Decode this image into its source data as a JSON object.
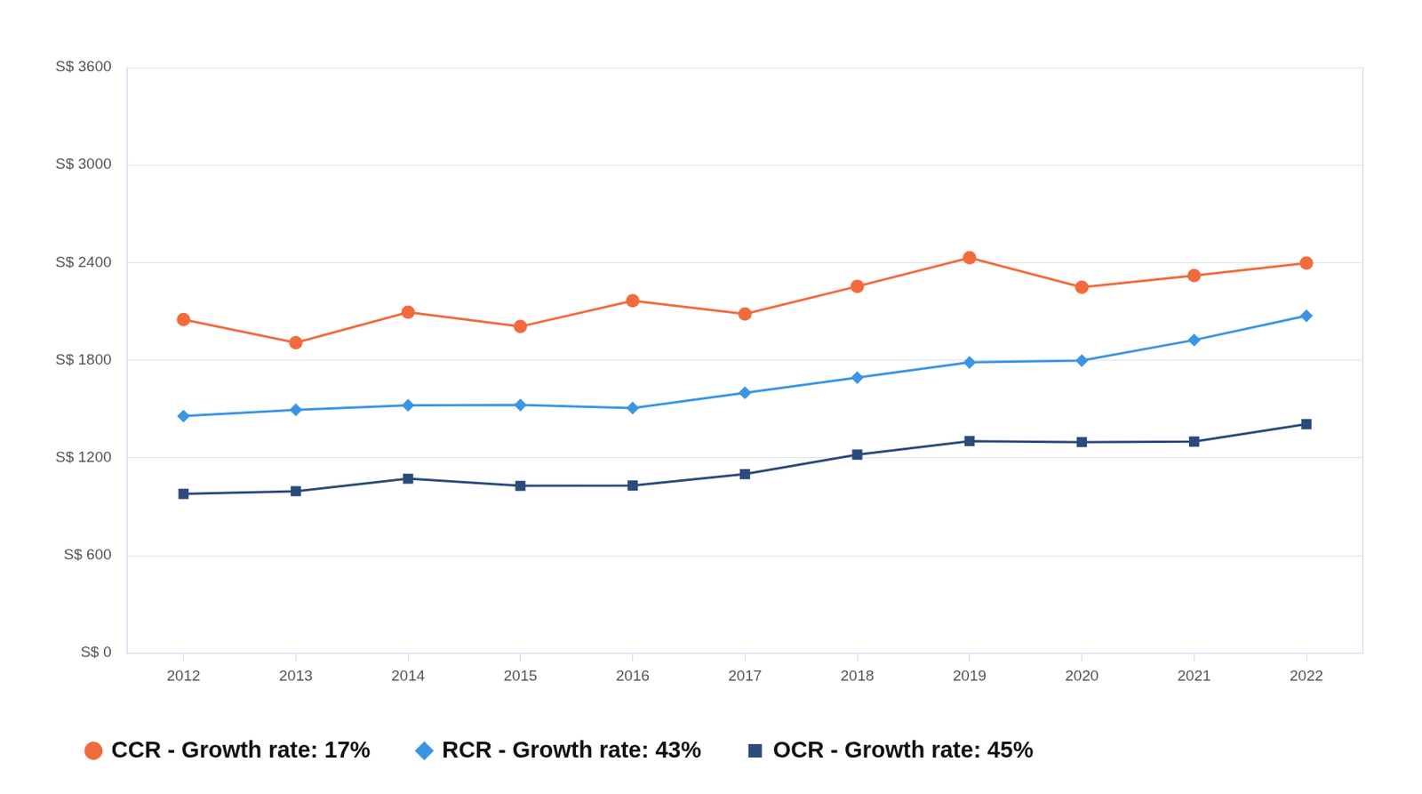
{
  "chart_data": {
    "type": "line",
    "categories": [
      "2012",
      "2013",
      "2014",
      "2015",
      "2016",
      "2017",
      "2018",
      "2019",
      "2020",
      "2021",
      "2022"
    ],
    "series": [
      {
        "name": "CCR - Growth rate: 17%",
        "color": "#f26b3d",
        "marker": "circle",
        "line_style": "solid",
        "values": [
          2050,
          1908,
          2095,
          2007,
          2166,
          2084,
          2254,
          2430,
          2249,
          2320,
          2397
        ]
      },
      {
        "name": "RCR - Growth rate: 43%",
        "color": "#3b95e5",
        "marker": "diamond",
        "line_style": "solid",
        "values": [
          1457,
          1495,
          1523,
          1525,
          1506,
          1600,
          1693,
          1787,
          1798,
          1924,
          2073
        ]
      },
      {
        "name": "OCR - Growth rate: 45%",
        "color": "#2a4b7c",
        "marker": "square",
        "line_style": "solid",
        "values": [
          979,
          995,
          1072,
          1028,
          1030,
          1100,
          1220,
          1303,
          1297,
          1300,
          1407
        ]
      }
    ],
    "ylim": [
      0,
      3600
    ],
    "yticks": [
      {
        "value": 0,
        "label": "S$ 0"
      },
      {
        "value": 600,
        "label": "S$ 600"
      },
      {
        "value": 1200,
        "label": "S$ 1200"
      },
      {
        "value": 1800,
        "label": "S$ 1800"
      },
      {
        "value": 2400,
        "label": "S$ 2400"
      },
      {
        "value": 3000,
        "label": "S$ 3000"
      },
      {
        "value": 3600,
        "label": "S$ 3600"
      }
    ],
    "grid": true,
    "legend": "bottom"
  }
}
